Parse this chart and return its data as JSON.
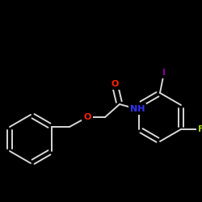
{
  "background": "#000000",
  "bond_color": "#d8d8d8",
  "O_color": "#ff2200",
  "N_color": "#3333ff",
  "I_color": "#880099",
  "F_color": "#99cc00",
  "figsize": [
    2.5,
    2.5
  ],
  "dpi": 100,
  "xlim": [
    0,
    250
  ],
  "ylim": [
    0,
    250
  ]
}
